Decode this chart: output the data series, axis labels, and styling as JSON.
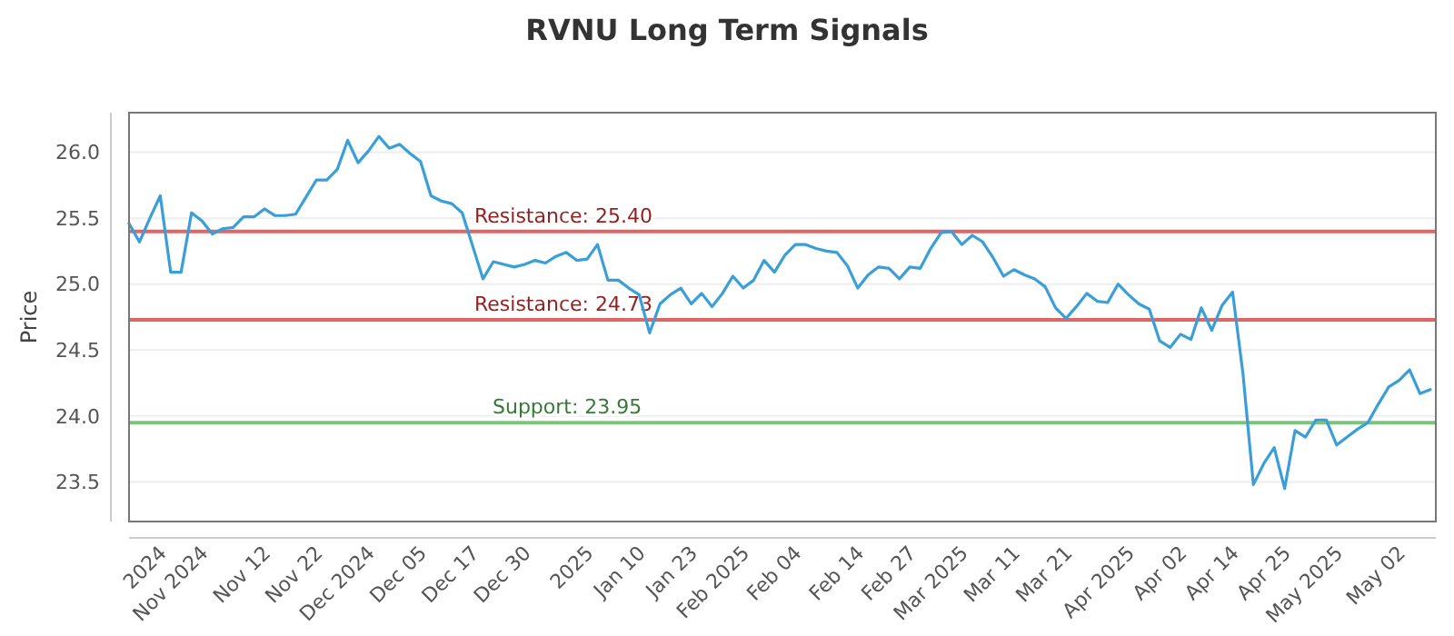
{
  "chart_data": {
    "type": "line",
    "title": "RVNU Long Term Signals",
    "ylabel": "Price",
    "categories": [
      null,
      null,
      null,
      "2024",
      null,
      null,
      null,
      "Nov 2024",
      null,
      null,
      null,
      null,
      null,
      "Nov 12",
      null,
      null,
      null,
      null,
      "Nov 22",
      null,
      null,
      null,
      null,
      "Dec 2024",
      null,
      null,
      null,
      null,
      "Dec 05",
      null,
      null,
      null,
      null,
      "Dec 17",
      null,
      null,
      null,
      null,
      "Dec 30",
      null,
      null,
      null,
      null,
      null,
      "2025",
      null,
      null,
      null,
      null,
      "Jan 10",
      null,
      null,
      null,
      null,
      "Jan 23",
      null,
      null,
      null,
      null,
      "Feb 2025",
      null,
      null,
      null,
      null,
      "Feb 04",
      null,
      null,
      null,
      null,
      null,
      "Feb 14",
      null,
      null,
      null,
      null,
      "Feb 27",
      null,
      null,
      null,
      null,
      "Mar 2025",
      null,
      null,
      null,
      null,
      "Mar 11",
      null,
      null,
      null,
      null,
      "Mar 21",
      null,
      null,
      null,
      null,
      null,
      "Apr 2025",
      null,
      null,
      null,
      null,
      "Apr 02",
      null,
      null,
      null,
      null,
      "Apr 14",
      null,
      null,
      null,
      null,
      "Apr 25",
      null,
      null,
      null,
      null,
      "May 2025",
      null,
      null,
      null,
      null,
      null,
      "May 02",
      null,
      null,
      null
    ],
    "series": [
      {
        "color": "#3a9fd8",
        "values": [
          25.46,
          25.32,
          25.5,
          25.67,
          25.09,
          25.09,
          25.54,
          25.48,
          25.38,
          25.42,
          25.43,
          25.51,
          25.51,
          25.57,
          25.52,
          25.52,
          25.53,
          25.66,
          25.79,
          25.79,
          25.87,
          26.09,
          25.92,
          26.01,
          26.12,
          26.03,
          26.06,
          25.99,
          25.93,
          25.67,
          25.63,
          25.61,
          25.54,
          25.29,
          25.04,
          25.17,
          25.15,
          25.13,
          25.15,
          25.18,
          25.16,
          25.21,
          25.24,
          25.18,
          25.19,
          25.3,
          25.03,
          25.03,
          24.97,
          24.92,
          24.63,
          24.85,
          24.92,
          24.97,
          24.85,
          24.93,
          24.83,
          24.93,
          25.06,
          24.97,
          25.03,
          25.18,
          25.09,
          25.22,
          25.3,
          25.3,
          25.27,
          25.25,
          25.24,
          25.14,
          24.97,
          25.07,
          25.13,
          25.12,
          25.04,
          25.13,
          25.12,
          25.27,
          25.39,
          25.4,
          25.3,
          25.37,
          25.32,
          25.2,
          25.06,
          25.11,
          25.07,
          25.04,
          24.98,
          24.82,
          24.74,
          24.83,
          24.93,
          24.87,
          24.86,
          25.0,
          24.92,
          24.85,
          24.81,
          24.57,
          24.52,
          24.62,
          24.58,
          24.82,
          24.65,
          24.84,
          24.94,
          24.32,
          23.48,
          23.64,
          23.76,
          23.45,
          23.89,
          23.84,
          23.97,
          23.97,
          23.78,
          23.84,
          23.9,
          23.95,
          24.09,
          24.22,
          24.27,
          24.35,
          24.17,
          24.2
        ]
      }
    ],
    "ylim": [
      23.2,
      26.3
    ],
    "yticks": [
      {
        "value": 23.5,
        "label": "23.5"
      },
      {
        "value": 24,
        "label": "24.0"
      },
      {
        "value": 24.5,
        "label": "24.5"
      },
      {
        "value": 25,
        "label": "25.0"
      },
      {
        "value": 25.5,
        "label": "25.5"
      },
      {
        "value": 26,
        "label": "26.0"
      }
    ],
    "grid": "y",
    "marker": "none",
    "line_style": "solid",
    "ref_lines": [
      {
        "axis": "y",
        "value": 25.4,
        "label": "Resistance: 25.40",
        "color": "#e06666"
      },
      {
        "axis": "y",
        "value": 24.73,
        "label": "Resistance: 24.73",
        "color": "#e06666"
      },
      {
        "axis": "y",
        "value": 23.95,
        "label": "Support: 23.95",
        "color": "#7cc47c"
      }
    ]
  }
}
